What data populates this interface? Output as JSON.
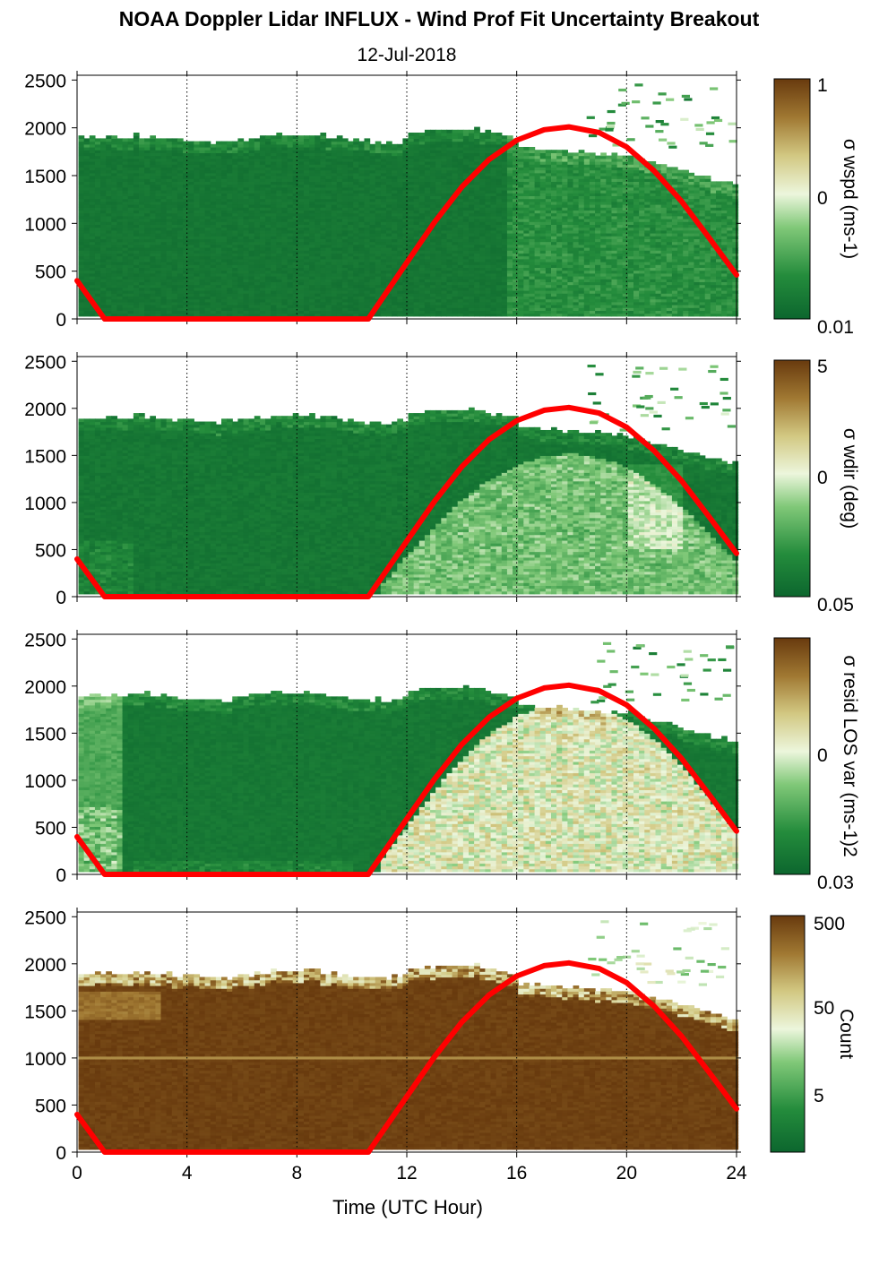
{
  "chart_data": [
    {
      "type": "heatmap",
      "title": "NOAA Doppler Lidar INFLUX - Wind Prof Fit Uncertainty Breakout",
      "subtitle": "12-Jul-2018",
      "ylim": [
        0,
        2550
      ],
      "xlim": [
        0,
        24
      ],
      "yticks": [
        "0",
        "500",
        "1000",
        "1500",
        "2000",
        "2500"
      ],
      "ytick_values": [
        0,
        500,
        1000,
        1500,
        2000,
        2500
      ],
      "xtick_values": [
        0,
        4,
        8,
        12,
        16,
        20,
        24
      ],
      "xgrid": "dotted vertical lines at every 4 hours",
      "colorbar": {
        "title": "σ wspd (ms-1)",
        "scale": "log",
        "labels": [
          "1",
          "0",
          "0.01"
        ]
      },
      "field": "wspd",
      "series": [
        {
          "type": "line",
          "color": "#ff0000",
          "x": [
            0,
            1,
            10.6,
            12,
            13,
            14,
            15,
            16,
            17,
            17.9,
            19,
            20,
            21,
            22,
            23,
            24
          ],
          "y": [
            400,
            0,
            0,
            590,
            1010,
            1380,
            1670,
            1870,
            1980,
            2010,
            1950,
            1800,
            1550,
            1230,
            850,
            460
          ]
        }
      ]
    },
    {
      "type": "heatmap",
      "ylim": [
        0,
        2550
      ],
      "xlim": [
        0,
        24
      ],
      "yticks": [
        "0",
        "500",
        "1000",
        "1500",
        "2000",
        "2500"
      ],
      "ytick_values": [
        0,
        500,
        1000,
        1500,
        2000,
        2500
      ],
      "xtick_values": [
        0,
        4,
        8,
        12,
        16,
        20,
        24
      ],
      "xgrid": "dotted vertical lines at every 4 hours",
      "colorbar": {
        "title": "σ wdir (deg)",
        "scale": "log",
        "labels": [
          "5",
          "0",
          "0.05"
        ]
      },
      "field": "wdir",
      "series": [
        {
          "type": "line",
          "color": "#ff0000",
          "x": [
            0,
            1,
            10.6,
            12,
            13,
            14,
            15,
            16,
            17,
            17.9,
            19,
            20,
            21,
            22,
            23,
            24
          ],
          "y": [
            400,
            0,
            0,
            590,
            1010,
            1380,
            1670,
            1870,
            1980,
            2010,
            1950,
            1800,
            1550,
            1230,
            850,
            460
          ]
        }
      ]
    },
    {
      "type": "heatmap",
      "ylim": [
        0,
        2550
      ],
      "xlim": [
        0,
        24
      ],
      "yticks": [
        "0",
        "500",
        "1000",
        "1500",
        "2000",
        "2500"
      ],
      "ytick_values": [
        0,
        500,
        1000,
        1500,
        2000,
        2500
      ],
      "xtick_values": [
        0,
        4,
        8,
        12,
        16,
        20,
        24
      ],
      "xgrid": "dotted vertical lines at every 4 hours",
      "colorbar": {
        "title": "σ resid LOS var (ms-1)2",
        "scale": "log",
        "labels": [
          "",
          "0",
          "0.03"
        ]
      },
      "field": "resid",
      "series": [
        {
          "type": "line",
          "color": "#ff0000",
          "x": [
            0,
            1,
            10.6,
            12,
            13,
            14,
            15,
            16,
            17,
            17.9,
            19,
            20,
            21,
            22,
            23,
            24
          ],
          "y": [
            400,
            0,
            0,
            590,
            1010,
            1380,
            1670,
            1870,
            1980,
            2010,
            1950,
            1800,
            1550,
            1230,
            850,
            460
          ]
        }
      ]
    },
    {
      "type": "heatmap",
      "ylim": [
        0,
        2550
      ],
      "xlim": [
        0,
        24
      ],
      "yticks": [
        "0",
        "500",
        "1000",
        "1500",
        "2000",
        "2500"
      ],
      "ytick_values": [
        0,
        500,
        1000,
        1500,
        2000,
        2500
      ],
      "xtick_values": [
        0,
        4,
        8,
        12,
        16,
        20,
        24
      ],
      "xticks": [
        "0",
        "4",
        "8",
        "12",
        "16",
        "20",
        "24"
      ],
      "xlabel": "Time (UTC Hour)",
      "xgrid": "dotted vertical lines at every 4 hours",
      "colorbar": {
        "title": "Count",
        "scale": "log",
        "labels": [
          "500",
          "50",
          "5"
        ]
      },
      "field": "count",
      "series": [
        {
          "type": "line",
          "color": "#ff0000",
          "x": [
            0,
            1,
            10.6,
            12,
            13,
            14,
            15,
            16,
            17,
            17.9,
            19,
            20,
            21,
            22,
            23,
            24
          ],
          "y": [
            400,
            0,
            0,
            590,
            1010,
            1380,
            1670,
            1870,
            1980,
            2010,
            1950,
            1800,
            1550,
            1230,
            850,
            460
          ]
        }
      ]
    }
  ],
  "colors": {
    "dark_green": "#0a6a2f",
    "green": "#2f9a44",
    "light_green": "#a6dc92",
    "pale": "#eef7e2",
    "tan": "#c8b36a",
    "brown": "#6b3c0e",
    "line": "#ff0000"
  },
  "texts": {
    "title": "NOAA Doppler Lidar INFLUX - Wind Prof Fit Uncertainty Breakout",
    "subtitle": "12-Jul-2018",
    "xlabel": "Time (UTC Hour)",
    "cb1_top": "1",
    "cb1_mid": "0",
    "cb1_bot": "0.01",
    "cb2_top": "5",
    "cb2_mid": "0",
    "cb2_bot": "0.05",
    "cb3_mid": "0",
    "cb3_bot": "0.03",
    "cb4_top": "500",
    "cb4_mid": "50",
    "cb4_low": "5"
  }
}
